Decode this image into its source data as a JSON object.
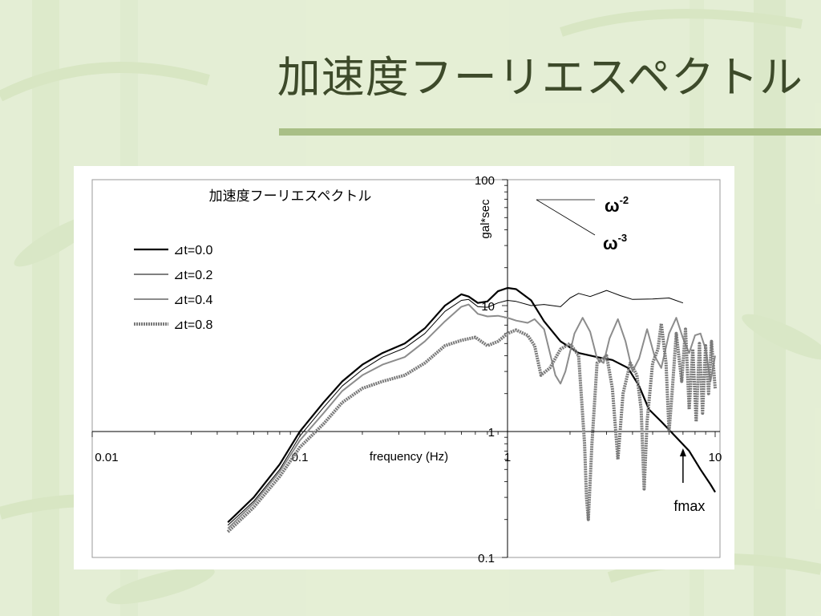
{
  "slide": {
    "title": "加速度フーリエスペクトル",
    "theme_colors": {
      "background": "#e6efd8",
      "rule": "#a9bf86",
      "title": "#3d4a2a"
    }
  },
  "chart_data": {
    "type": "line",
    "title": "加速度フーリエスペクトル",
    "xlabel": "frequency (Hz)",
    "ylabel": "gal*sec",
    "x_scale": "log",
    "y_scale": "log",
    "xlim": [
      0.01,
      10
    ],
    "ylim": [
      0.1,
      100
    ],
    "x_ticks": [
      "0.01",
      "0.1",
      "1",
      "10"
    ],
    "y_ticks": [
      "100",
      "10",
      "1",
      "0.1"
    ],
    "legend_position": "left",
    "grid": false,
    "series": [
      {
        "name": "⊿t=0.0",
        "color": "#000000",
        "width": 2.2,
        "dash": "",
        "points": [
          [
            0.045,
            0.19
          ],
          [
            0.06,
            0.3
          ],
          [
            0.08,
            0.55
          ],
          [
            0.1,
            1.0
          ],
          [
            0.13,
            1.7
          ],
          [
            0.16,
            2.5
          ],
          [
            0.2,
            3.4
          ],
          [
            0.25,
            4.2
          ],
          [
            0.32,
            5.0
          ],
          [
            0.4,
            6.6
          ],
          [
            0.5,
            10.0
          ],
          [
            0.6,
            12.3
          ],
          [
            0.65,
            11.8
          ],
          [
            0.72,
            10.5
          ],
          [
            0.8,
            10.8
          ],
          [
            0.9,
            13.0
          ],
          [
            1.0,
            13.8
          ],
          [
            1.1,
            13.5
          ],
          [
            1.3,
            11.0
          ],
          [
            1.5,
            7.5
          ],
          [
            1.8,
            5.2
          ],
          [
            2.2,
            4.2
          ],
          [
            2.7,
            3.9
          ],
          [
            3.2,
            3.7
          ],
          [
            3.8,
            3.2
          ],
          [
            4.3,
            2.3
          ],
          [
            4.8,
            1.5
          ],
          [
            5.5,
            1.2
          ],
          [
            6.5,
            0.9
          ],
          [
            7.5,
            0.7
          ],
          [
            8.5,
            0.5
          ],
          [
            9.5,
            0.38
          ],
          [
            10.0,
            0.33
          ]
        ]
      },
      {
        "name": "⊿t=0.2",
        "color": "#000000",
        "width": 1.0,
        "dash": "",
        "points": [
          [
            0.045,
            0.18
          ],
          [
            0.06,
            0.28
          ],
          [
            0.08,
            0.5
          ],
          [
            0.1,
            0.92
          ],
          [
            0.13,
            1.55
          ],
          [
            0.16,
            2.3
          ],
          [
            0.2,
            3.1
          ],
          [
            0.25,
            3.9
          ],
          [
            0.32,
            4.6
          ],
          [
            0.4,
            6.0
          ],
          [
            0.5,
            9.0
          ],
          [
            0.6,
            11.0
          ],
          [
            0.65,
            11.2
          ],
          [
            0.72,
            9.8
          ],
          [
            0.8,
            9.7
          ],
          [
            0.9,
            10.5
          ],
          [
            1.0,
            11.0
          ],
          [
            1.1,
            10.8
          ],
          [
            1.3,
            10.0
          ],
          [
            1.5,
            10.2
          ],
          [
            1.8,
            9.8
          ],
          [
            2.0,
            11.5
          ],
          [
            2.2,
            12.5
          ],
          [
            2.5,
            11.8
          ],
          [
            3.0,
            13.2
          ],
          [
            3.5,
            12.0
          ],
          [
            4.0,
            11.2
          ],
          [
            5.0,
            11.3
          ],
          [
            6.0,
            11.5
          ],
          [
            7.0,
            10.5
          ]
        ]
      },
      {
        "name": "⊿t=0.4",
        "color": "#8c8c8c",
        "width": 2.0,
        "dash": "",
        "points": [
          [
            0.045,
            0.17
          ],
          [
            0.06,
            0.27
          ],
          [
            0.08,
            0.48
          ],
          [
            0.1,
            0.85
          ],
          [
            0.13,
            1.4
          ],
          [
            0.16,
            2.1
          ],
          [
            0.2,
            2.8
          ],
          [
            0.25,
            3.4
          ],
          [
            0.32,
            3.9
          ],
          [
            0.4,
            5.2
          ],
          [
            0.5,
            7.5
          ],
          [
            0.6,
            9.8
          ],
          [
            0.65,
            10.2
          ],
          [
            0.72,
            8.6
          ],
          [
            0.8,
            8.2
          ],
          [
            0.9,
            8.3
          ],
          [
            1.0,
            8.0
          ],
          [
            1.1,
            7.6
          ],
          [
            1.25,
            7.3
          ],
          [
            1.35,
            7.8
          ],
          [
            1.5,
            6.5
          ],
          [
            1.7,
            2.8
          ],
          [
            1.8,
            2.4
          ],
          [
            1.9,
            3.0
          ],
          [
            2.1,
            6.0
          ],
          [
            2.3,
            8.0
          ],
          [
            2.5,
            6.2
          ],
          [
            2.7,
            3.8
          ],
          [
            2.9,
            3.5
          ],
          [
            3.1,
            5.5
          ],
          [
            3.4,
            7.8
          ],
          [
            3.7,
            5.2
          ],
          [
            4.0,
            3.0
          ],
          [
            4.3,
            3.8
          ],
          [
            4.7,
            6.5
          ],
          [
            5.1,
            4.0
          ],
          [
            5.5,
            3.2
          ],
          [
            6.0,
            6.0
          ],
          [
            6.5,
            8.0
          ],
          [
            7.0,
            5.5
          ],
          [
            7.5,
            4.2
          ],
          [
            8.0,
            5.8
          ],
          [
            8.5,
            6.0
          ],
          [
            9.0,
            4.5
          ],
          [
            9.5,
            2.5
          ],
          [
            10.0,
            4.0
          ]
        ]
      },
      {
        "name": "⊿t=0.8",
        "color": "#7a7a7a",
        "width": 4.0,
        "dash": "2 1",
        "points": [
          [
            0.045,
            0.16
          ],
          [
            0.06,
            0.25
          ],
          [
            0.08,
            0.44
          ],
          [
            0.1,
            0.75
          ],
          [
            0.13,
            1.15
          ],
          [
            0.16,
            1.7
          ],
          [
            0.2,
            2.2
          ],
          [
            0.25,
            2.5
          ],
          [
            0.32,
            2.8
          ],
          [
            0.4,
            3.5
          ],
          [
            0.5,
            4.8
          ],
          [
            0.6,
            5.3
          ],
          [
            0.7,
            5.6
          ],
          [
            0.8,
            4.8
          ],
          [
            0.9,
            5.2
          ],
          [
            1.0,
            6.0
          ],
          [
            1.1,
            6.4
          ],
          [
            1.25,
            5.8
          ],
          [
            1.35,
            4.8
          ],
          [
            1.45,
            2.8
          ],
          [
            1.6,
            3.2
          ],
          [
            1.8,
            4.5
          ],
          [
            2.0,
            5.0
          ],
          [
            2.2,
            4.0
          ],
          [
            2.35,
            0.8
          ],
          [
            2.4,
            0.3
          ],
          [
            2.45,
            0.2
          ],
          [
            2.55,
            0.8
          ],
          [
            2.7,
            3.5
          ],
          [
            3.0,
            4.0
          ],
          [
            3.2,
            2.2
          ],
          [
            3.4,
            0.6
          ],
          [
            3.6,
            2.0
          ],
          [
            3.9,
            3.5
          ],
          [
            4.2,
            2.8
          ],
          [
            4.4,
            1.5
          ],
          [
            4.55,
            0.35
          ],
          [
            4.7,
            1.2
          ],
          [
            5.0,
            3.5
          ],
          [
            5.3,
            4.5
          ],
          [
            5.5,
            7.2
          ],
          [
            5.8,
            3.5
          ],
          [
            6.0,
            1.0
          ],
          [
            6.2,
            2.0
          ],
          [
            6.5,
            6.0
          ],
          [
            6.9,
            2.5
          ],
          [
            7.2,
            6.5
          ],
          [
            7.5,
            1.5
          ],
          [
            7.8,
            4.5
          ],
          [
            8.1,
            1.2
          ],
          [
            8.4,
            5.0
          ],
          [
            8.7,
            1.4
          ],
          [
            9.0,
            4.8
          ],
          [
            9.3,
            2.0
          ],
          [
            9.6,
            5.2
          ],
          [
            10.0,
            2.2
          ]
        ]
      }
    ],
    "slope_labels": [
      {
        "base": "ω",
        "exponent": "-2"
      },
      {
        "base": "ω",
        "exponent": "-3"
      }
    ],
    "annotation": {
      "label": "fmax",
      "x": 7.0
    }
  }
}
